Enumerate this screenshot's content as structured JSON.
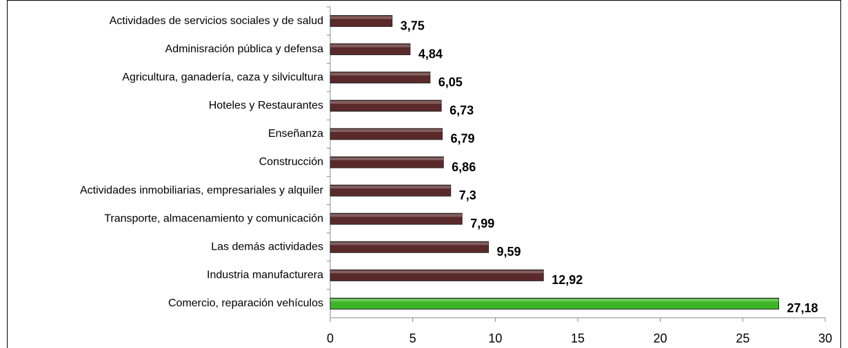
{
  "chart_data": {
    "type": "bar",
    "orientation": "horizontal",
    "categories": [
      "Actividades de servicios sociales y de salud",
      "Adminisración pública y defensa",
      "Agricultura, ganadería, caza y silvicultura",
      "Hoteles y Restaurantes",
      "Enseñanza",
      "Construcción",
      "Actividades inmobiliarias, empresariales y alquiler",
      "Transporte, almacenamiento y comunicación",
      "Las demás actividades",
      "Industria manufacturera",
      "Comercio, reparación vehículos"
    ],
    "values": [
      3.75,
      4.84,
      6.05,
      6.73,
      6.79,
      6.86,
      7.3,
      7.99,
      9.59,
      12.92,
      27.18
    ],
    "value_labels": [
      "3,75",
      "4,84",
      "6,05",
      "6,73",
      "6,79",
      "6,86",
      "7,3",
      "7,99",
      "9,59",
      "12,92",
      "27,18"
    ],
    "colors": [
      "#5a2a2a",
      "#5a2a2a",
      "#5a2a2a",
      "#5a2a2a",
      "#5a2a2a",
      "#5a2a2a",
      "#5a2a2a",
      "#5a2a2a",
      "#5a2a2a",
      "#5a2a2a",
      "#3cb527"
    ],
    "xlim": [
      0,
      30
    ],
    "xticks": [
      0,
      5,
      10,
      15,
      20,
      25,
      30
    ]
  }
}
